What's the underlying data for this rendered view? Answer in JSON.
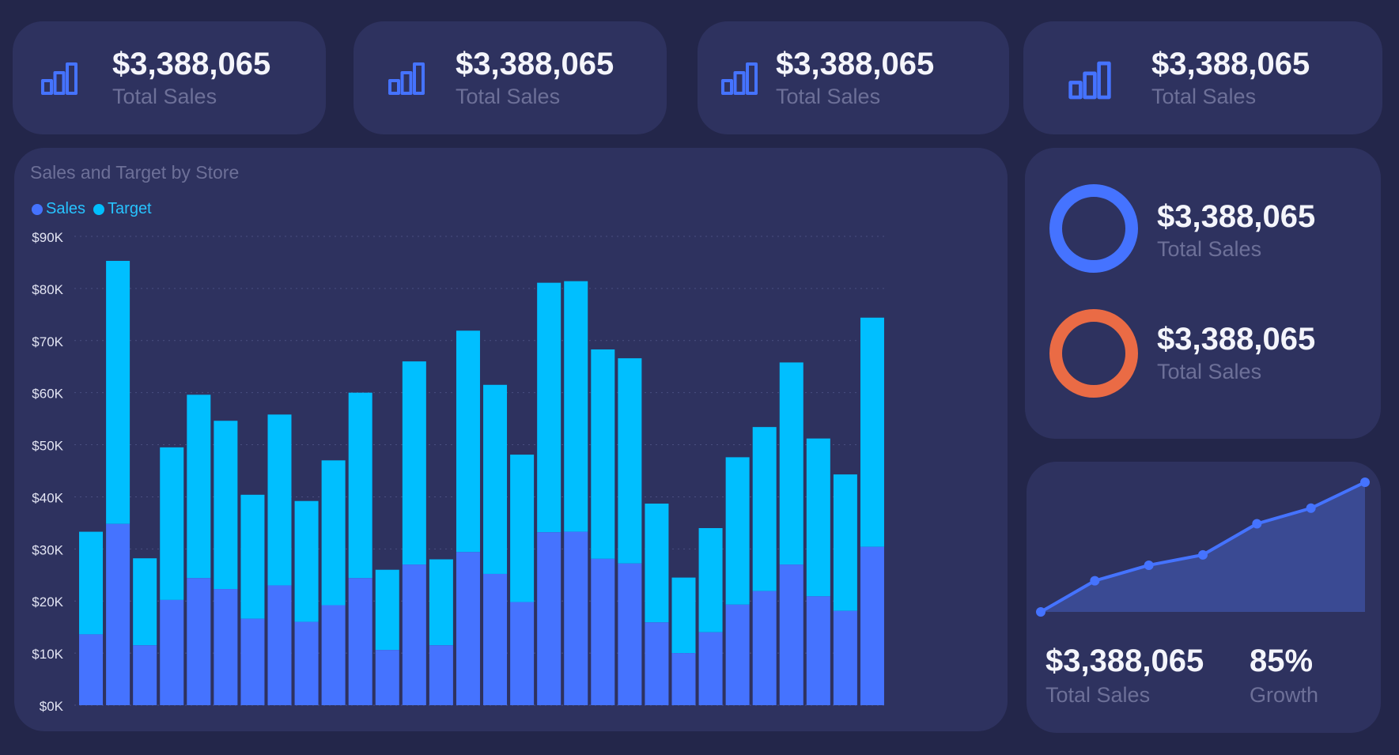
{
  "colors": {
    "background": "#23264a",
    "card": "#2e325f",
    "sales": "#4573ff",
    "target": "#00bfff",
    "donut_orange": "#ea6b45",
    "area_fill": "#3a4a93",
    "value_text": "#f4f5fb",
    "muted_text": "#6d7098"
  },
  "kpis": [
    {
      "value": "$3,388,065",
      "label": "Total Sales",
      "icon": "bar-chart-icon"
    },
    {
      "value": "$3,388,065",
      "label": "Total Sales",
      "icon": "bar-chart-icon"
    },
    {
      "value": "$3,388,065",
      "label": "Total Sales",
      "icon": "bar-chart-icon"
    },
    {
      "value": "$3,388,065",
      "label": "Total Sales",
      "icon": "bar-chart-icon"
    }
  ],
  "donuts": [
    {
      "value": "$3,388,065",
      "label": "Total Sales",
      "percent": 100,
      "color": "#4573ff"
    },
    {
      "value": "$3,388,065",
      "label": "Total Sales",
      "percent": 100,
      "color": "#ea6b45"
    }
  ],
  "trend_card": {
    "value": "$3,388,065",
    "label": "Total Sales",
    "growth_value": "85%",
    "growth_label": "Growth"
  },
  "chart_data": [
    {
      "type": "bar",
      "stacked": true,
      "title": "Sales and Target by Store",
      "legend": [
        "Sales",
        "Target"
      ],
      "legend_position": "top-left",
      "grid": "horizontal dotted",
      "ylim": [
        0,
        90000
      ],
      "yticks": [
        "$0K",
        "$10K",
        "$20K",
        "$30K",
        "$40K",
        "$50K",
        "$60K",
        "$70K",
        "$80K",
        "$90K"
      ],
      "series": [
        {
          "name": "Sales",
          "values": [
            13600,
            34800,
            11500,
            20200,
            24400,
            22300,
            16600,
            23000,
            16000,
            19200,
            24400,
            10600,
            27000,
            11500,
            29400,
            25200,
            19800,
            33200,
            33300,
            28100,
            27200,
            15900,
            10000,
            14000,
            19300,
            21900,
            27000,
            20900,
            18100,
            30400
          ]
        },
        {
          "name": "Target",
          "values": [
            19700,
            50500,
            16700,
            29300,
            35200,
            32300,
            23800,
            32800,
            23200,
            27800,
            35600,
            15400,
            39000,
            16500,
            42500,
            36300,
            28300,
            47900,
            48100,
            40200,
            39400,
            22800,
            14500,
            20000,
            28300,
            31500,
            38800,
            30300,
            26200,
            44000
          ]
        }
      ]
    },
    {
      "type": "area",
      "values": [
        0,
        6,
        9,
        11,
        17,
        20,
        25
      ]
    }
  ]
}
